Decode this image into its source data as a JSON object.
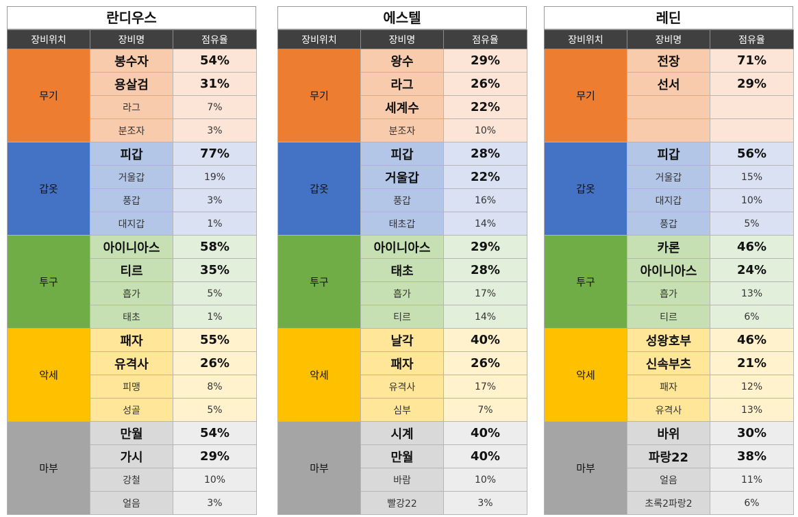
{
  "header_labels": {
    "position": "장비위치",
    "name": "장비명",
    "share": "점유율"
  },
  "colors": {
    "무기": {
      "cat": "#ED7D31",
      "name": "#F8CBAD",
      "share": "#FCE4D6"
    },
    "갑옷": {
      "cat": "#4472C4",
      "name": "#B4C6E7",
      "share": "#D9E1F2"
    },
    "투구": {
      "cat": "#70AD47",
      "name": "#C6E0B4",
      "share": "#E2EFDA"
    },
    "악세": {
      "cat": "#FFC000",
      "name": "#FFE699",
      "share": "#FFF2CC"
    },
    "마부": {
      "cat": "#A5A5A5",
      "name": "#D9D9D9",
      "share": "#EDEDED"
    }
  },
  "panels": [
    {
      "title": "란디우스",
      "groups": [
        {
          "category": "무기",
          "rows": [
            {
              "name": "봉수자",
              "share": "54%",
              "major": true
            },
            {
              "name": "용살검",
              "share": "31%",
              "major": true
            },
            {
              "name": "라그",
              "share": "7%",
              "major": false
            },
            {
              "name": "분조자",
              "share": "3%",
              "major": false
            }
          ]
        },
        {
          "category": "갑옷",
          "rows": [
            {
              "name": "피갑",
              "share": "77%",
              "major": true
            },
            {
              "name": "거울갑",
              "share": "19%",
              "major": false
            },
            {
              "name": "풍갑",
              "share": "3%",
              "major": false
            },
            {
              "name": "대지갑",
              "share": "1%",
              "major": false
            }
          ]
        },
        {
          "category": "투구",
          "rows": [
            {
              "name": "아이니아스",
              "share": "58%",
              "major": true
            },
            {
              "name": "티르",
              "share": "35%",
              "major": true
            },
            {
              "name": "흡가",
              "share": "5%",
              "major": false
            },
            {
              "name": "태초",
              "share": "1%",
              "major": false
            }
          ]
        },
        {
          "category": "악세",
          "rows": [
            {
              "name": "패자",
              "share": "55%",
              "major": true
            },
            {
              "name": "유격사",
              "share": "26%",
              "major": true
            },
            {
              "name": "피맹",
              "share": "8%",
              "major": false
            },
            {
              "name": "성골",
              "share": "5%",
              "major": false
            }
          ]
        },
        {
          "category": "마부",
          "rows": [
            {
              "name": "만월",
              "share": "54%",
              "major": true
            },
            {
              "name": "가시",
              "share": "29%",
              "major": true
            },
            {
              "name": "강철",
              "share": "10%",
              "major": false
            },
            {
              "name": "얼음",
              "share": "3%",
              "major": false
            }
          ]
        }
      ]
    },
    {
      "title": "에스텔",
      "groups": [
        {
          "category": "무기",
          "rows": [
            {
              "name": "왕수",
              "share": "29%",
              "major": true
            },
            {
              "name": "라그",
              "share": "26%",
              "major": true
            },
            {
              "name": "세계수",
              "share": "22%",
              "major": true
            },
            {
              "name": "분조자",
              "share": "10%",
              "major": false
            }
          ]
        },
        {
          "category": "갑옷",
          "rows": [
            {
              "name": "피갑",
              "share": "28%",
              "major": true
            },
            {
              "name": "거울갑",
              "share": "22%",
              "major": true
            },
            {
              "name": "풍갑",
              "share": "16%",
              "major": false
            },
            {
              "name": "태초갑",
              "share": "14%",
              "major": false
            }
          ]
        },
        {
          "category": "투구",
          "rows": [
            {
              "name": "아이니아스",
              "share": "29%",
              "major": true
            },
            {
              "name": "태초",
              "share": "28%",
              "major": true
            },
            {
              "name": "흡가",
              "share": "17%",
              "major": false
            },
            {
              "name": "티르",
              "share": "14%",
              "major": false
            }
          ]
        },
        {
          "category": "악세",
          "rows": [
            {
              "name": "날각",
              "share": "40%",
              "major": true
            },
            {
              "name": "패자",
              "share": "26%",
              "major": true
            },
            {
              "name": "유격사",
              "share": "17%",
              "major": false
            },
            {
              "name": "심부",
              "share": "7%",
              "major": false
            }
          ]
        },
        {
          "category": "마부",
          "rows": [
            {
              "name": "시계",
              "share": "40%",
              "major": true
            },
            {
              "name": "만월",
              "share": "40%",
              "major": true
            },
            {
              "name": "바람",
              "share": "10%",
              "major": false
            },
            {
              "name": "빨강22",
              "share": "3%",
              "major": false
            }
          ]
        }
      ]
    },
    {
      "title": "레딘",
      "groups": [
        {
          "category": "무기",
          "rows": [
            {
              "name": "전장",
              "share": "71%",
              "major": true
            },
            {
              "name": "선서",
              "share": "29%",
              "major": true
            },
            {
              "name": "",
              "share": "",
              "major": false
            },
            {
              "name": "",
              "share": "",
              "major": false
            }
          ]
        },
        {
          "category": "갑옷",
          "rows": [
            {
              "name": "피갑",
              "share": "56%",
              "major": true
            },
            {
              "name": "거울갑",
              "share": "15%",
              "major": false
            },
            {
              "name": "대지갑",
              "share": "10%",
              "major": false
            },
            {
              "name": "풍갑",
              "share": "5%",
              "major": false
            }
          ]
        },
        {
          "category": "투구",
          "rows": [
            {
              "name": "카론",
              "share": "46%",
              "major": true
            },
            {
              "name": "아이니아스",
              "share": "24%",
              "major": true
            },
            {
              "name": "흡가",
              "share": "13%",
              "major": false
            },
            {
              "name": "티르",
              "share": "6%",
              "major": false
            }
          ]
        },
        {
          "category": "악세",
          "rows": [
            {
              "name": "성왕호부",
              "share": "46%",
              "major": true
            },
            {
              "name": "신속부츠",
              "share": "21%",
              "major": true
            },
            {
              "name": "패자",
              "share": "12%",
              "major": false
            },
            {
              "name": "유격사",
              "share": "13%",
              "major": false
            }
          ]
        },
        {
          "category": "마부",
          "rows": [
            {
              "name": "바위",
              "share": "30%",
              "major": true
            },
            {
              "name": "파랑22",
              "share": "38%",
              "major": true
            },
            {
              "name": "얼음",
              "share": "11%",
              "major": false
            },
            {
              "name": "초록2파랑2",
              "share": "6%",
              "major": false
            }
          ]
        }
      ]
    }
  ]
}
